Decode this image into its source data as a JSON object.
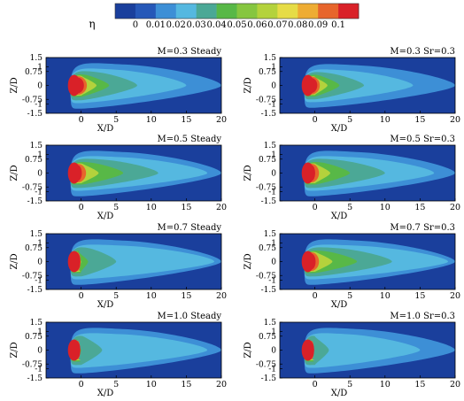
{
  "colorbar": {
    "symbol": "η",
    "tick_labels": [
      "0",
      "0.01",
      "0.02",
      "0.03",
      "0.04",
      "0.05",
      "0.06",
      "0.07",
      "0.08",
      "0.09",
      "0.1"
    ],
    "levels": [
      "#1a3f9c",
      "#2658b8",
      "#3d8fd6",
      "#55b8e0",
      "#4ba896",
      "#58b847",
      "#86c640",
      "#b4d23c",
      "#e6dc46",
      "#eeac33",
      "#e7652c",
      "#d92128"
    ]
  },
  "chart_data": [
    {
      "type": "heatmap",
      "title": "M=0.3 Steady",
      "xlabel": "X/D",
      "ylabel": "Z/D",
      "xlim": [
        -5,
        20
      ],
      "ylim": [
        -1.5,
        1.5
      ],
      "x_ticks": [
        "0",
        "5",
        "10",
        "15",
        "20"
      ],
      "y_ticks": [
        "1.5",
        "1",
        "0.75",
        "0",
        "-0.75",
        "-1",
        "-1.5"
      ],
      "plume": {
        "x_end": [
          20,
          15,
          8,
          4,
          2.2,
          1.2,
          0.5
        ],
        "half_width": [
          1.25,
          0.95,
          0.8,
          0.62,
          0.55,
          0.5,
          0.42
        ]
      }
    },
    {
      "type": "heatmap",
      "title": "M=0.3  Sr=0.3",
      "xlabel": "X/D",
      "ylabel": "Z/D",
      "xlim": [
        -5,
        20
      ],
      "ylim": [
        -1.5,
        1.5
      ],
      "x_ticks": [
        "0",
        "5",
        "10",
        "15",
        "20"
      ],
      "y_ticks": [
        "1.5",
        "1",
        "0.75",
        "0",
        "-0.75",
        "-1",
        "-1.5"
      ],
      "plume": {
        "x_end": [
          20,
          14,
          7,
          3.5,
          1.8,
          1,
          0.4
        ],
        "half_width": [
          1.2,
          0.9,
          0.75,
          0.6,
          0.52,
          0.48,
          0.4
        ]
      }
    },
    {
      "type": "heatmap",
      "title": "M=0.5 Steady",
      "xlabel": "X/D",
      "ylabel": "Z/D",
      "xlim": [
        -5,
        20
      ],
      "ylim": [
        -1.5,
        1.5
      ],
      "x_ticks": [
        "0",
        "5",
        "10",
        "15",
        "20"
      ],
      "y_ticks": [
        "1.5",
        "1",
        "0.75",
        "0",
        "-0.75",
        "-1",
        "-1.5"
      ],
      "plume": {
        "x_end": [
          20,
          18,
          11,
          6,
          2.5,
          1,
          0
        ]
      }
    },
    {
      "type": "heatmap",
      "title": "M=0.5  Sr=0.3",
      "xlabel": "X/D",
      "ylabel": "Z/D",
      "xlim": [
        -5,
        20
      ],
      "ylim": [
        -1.5,
        1.5
      ],
      "x_ticks": [
        "0",
        "5",
        "10",
        "15",
        "20"
      ],
      "y_ticks": [
        "1.5",
        "1",
        "0.75",
        "0",
        "-0.75",
        "-1",
        "-1.5"
      ],
      "plume": {
        "x_end": [
          20,
          17,
          10,
          5,
          2.2,
          0.8,
          -0.1
        ]
      }
    },
    {
      "type": "heatmap",
      "title": "M=0.7 Steady",
      "xlabel": "X/D",
      "ylabel": "Z/D",
      "xlim": [
        -5,
        20
      ],
      "ylim": [
        -1.5,
        1.5
      ],
      "x_ticks": [
        "0",
        "5",
        "10",
        "15",
        "20"
      ],
      "y_ticks": [
        "1.5",
        "1",
        "0.75",
        "0",
        "-0.75",
        "-1",
        "-1.5"
      ],
      "plume": {
        "x_end": [
          20,
          19,
          5,
          1,
          0,
          -0.3,
          -0.5
        ]
      }
    },
    {
      "type": "heatmap",
      "title": "M=0.7  Sr=0.3",
      "xlabel": "X/D",
      "ylabel": "Z/D",
      "xlim": [
        -5,
        20
      ],
      "ylim": [
        -1.5,
        1.5
      ],
      "x_ticks": [
        "0",
        "5",
        "10",
        "15",
        "20"
      ],
      "y_ticks": [
        "1.5",
        "1",
        "0.75",
        "0",
        "-0.75",
        "-1",
        "-1.5"
      ],
      "plume": {
        "x_end": [
          20,
          19,
          11,
          6,
          2.5,
          0.8,
          0
        ]
      }
    },
    {
      "type": "heatmap",
      "title": "M=1.0 Steady",
      "xlabel": "X/D",
      "ylabel": "Z/D",
      "xlim": [
        -5,
        20
      ],
      "ylim": [
        -1.5,
        1.5
      ],
      "x_ticks": [
        "0",
        "5",
        "10",
        "15",
        "20"
      ],
      "y_ticks": [
        "1.5",
        "1",
        "0.75",
        "0",
        "-0.75",
        "-1",
        "-1.5"
      ],
      "plume": {
        "x_end": [
          20,
          18,
          3,
          0,
          -0.4,
          -0.6,
          -0.8
        ]
      }
    },
    {
      "type": "heatmap",
      "title": "M=1.0  Sr=0.3",
      "xlabel": "X/D",
      "ylabel": "Z/D",
      "xlim": [
        -5,
        20
      ],
      "ylim": [
        -1.5,
        1.5
      ],
      "x_ticks": [
        "0",
        "5",
        "10",
        "15",
        "20"
      ],
      "y_ticks": [
        "1.5",
        "1",
        "0.75",
        "0",
        "-0.75",
        "-1",
        "-1.5"
      ],
      "plume": {
        "x_end": [
          20,
          15,
          2,
          -0.3,
          -0.5,
          -0.7,
          -0.9
        ]
      }
    }
  ]
}
